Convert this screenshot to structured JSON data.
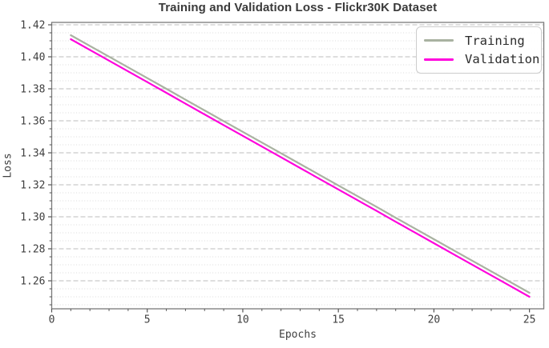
{
  "chart_data": {
    "type": "line",
    "title": "Training and Validation Loss - Flickr30K Dataset",
    "xlabel": "Epochs",
    "ylabel": "Loss",
    "x": [
      1,
      2,
      3,
      4,
      5,
      6,
      7,
      8,
      9,
      10,
      11,
      12,
      13,
      14,
      15,
      16,
      17,
      18,
      19,
      20,
      21,
      22,
      23,
      24,
      25
    ],
    "series": [
      {
        "name": "Training",
        "color": "#a9b2a1",
        "values": [
          1.4135,
          1.4068,
          1.4001,
          1.3934,
          1.3867,
          1.38,
          1.3732,
          1.3665,
          1.3598,
          1.3531,
          1.3464,
          1.3397,
          1.333,
          1.3263,
          1.3196,
          1.3129,
          1.3062,
          1.2994,
          1.2927,
          1.286,
          1.2793,
          1.2726,
          1.2659,
          1.2592,
          1.2525
        ]
      },
      {
        "name": "Validation",
        "color": "#ff00dd",
        "values": [
          1.411,
          1.4043,
          1.3976,
          1.3909,
          1.3842,
          1.3775,
          1.3707,
          1.364,
          1.3573,
          1.3506,
          1.3439,
          1.3372,
          1.3305,
          1.3238,
          1.3171,
          1.3104,
          1.3037,
          1.2969,
          1.2902,
          1.2835,
          1.2768,
          1.2701,
          1.2634,
          1.2567,
          1.25
        ]
      }
    ],
    "xlim": [
      0,
      25.75
    ],
    "ylim": [
      1.2425,
      1.4215
    ],
    "x_tick_values": [
      0,
      5,
      10,
      15,
      20,
      25
    ],
    "x_tick_labels": [
      "0",
      "5",
      "10",
      "15",
      "20",
      "25"
    ],
    "x_minor_step": 1,
    "y_tick_values": [
      1.26,
      1.28,
      1.3,
      1.32,
      1.34,
      1.36,
      1.38,
      1.4,
      1.42
    ],
    "y_tick_labels": [
      "1.26",
      "1.28",
      "1.30",
      "1.32",
      "1.34",
      "1.36",
      "1.38",
      "1.40",
      "1.42"
    ],
    "y_minor_step": 0.005,
    "grid": {
      "y_major": "dashed",
      "y_minor": "dotted",
      "x": "off"
    },
    "legend_position": "upper right"
  },
  "style": {
    "title_color": "#3a3a3a",
    "tick_label_color": "#404040",
    "axis_label_color": "#404040",
    "spine_color": "#7a7a7a",
    "tick_color": "#555555",
    "major_grid_color": "#bdbdbd",
    "minor_grid_color": "#dadada",
    "legend_text_color": "#2b2b2b",
    "background": "#ffffff"
  }
}
